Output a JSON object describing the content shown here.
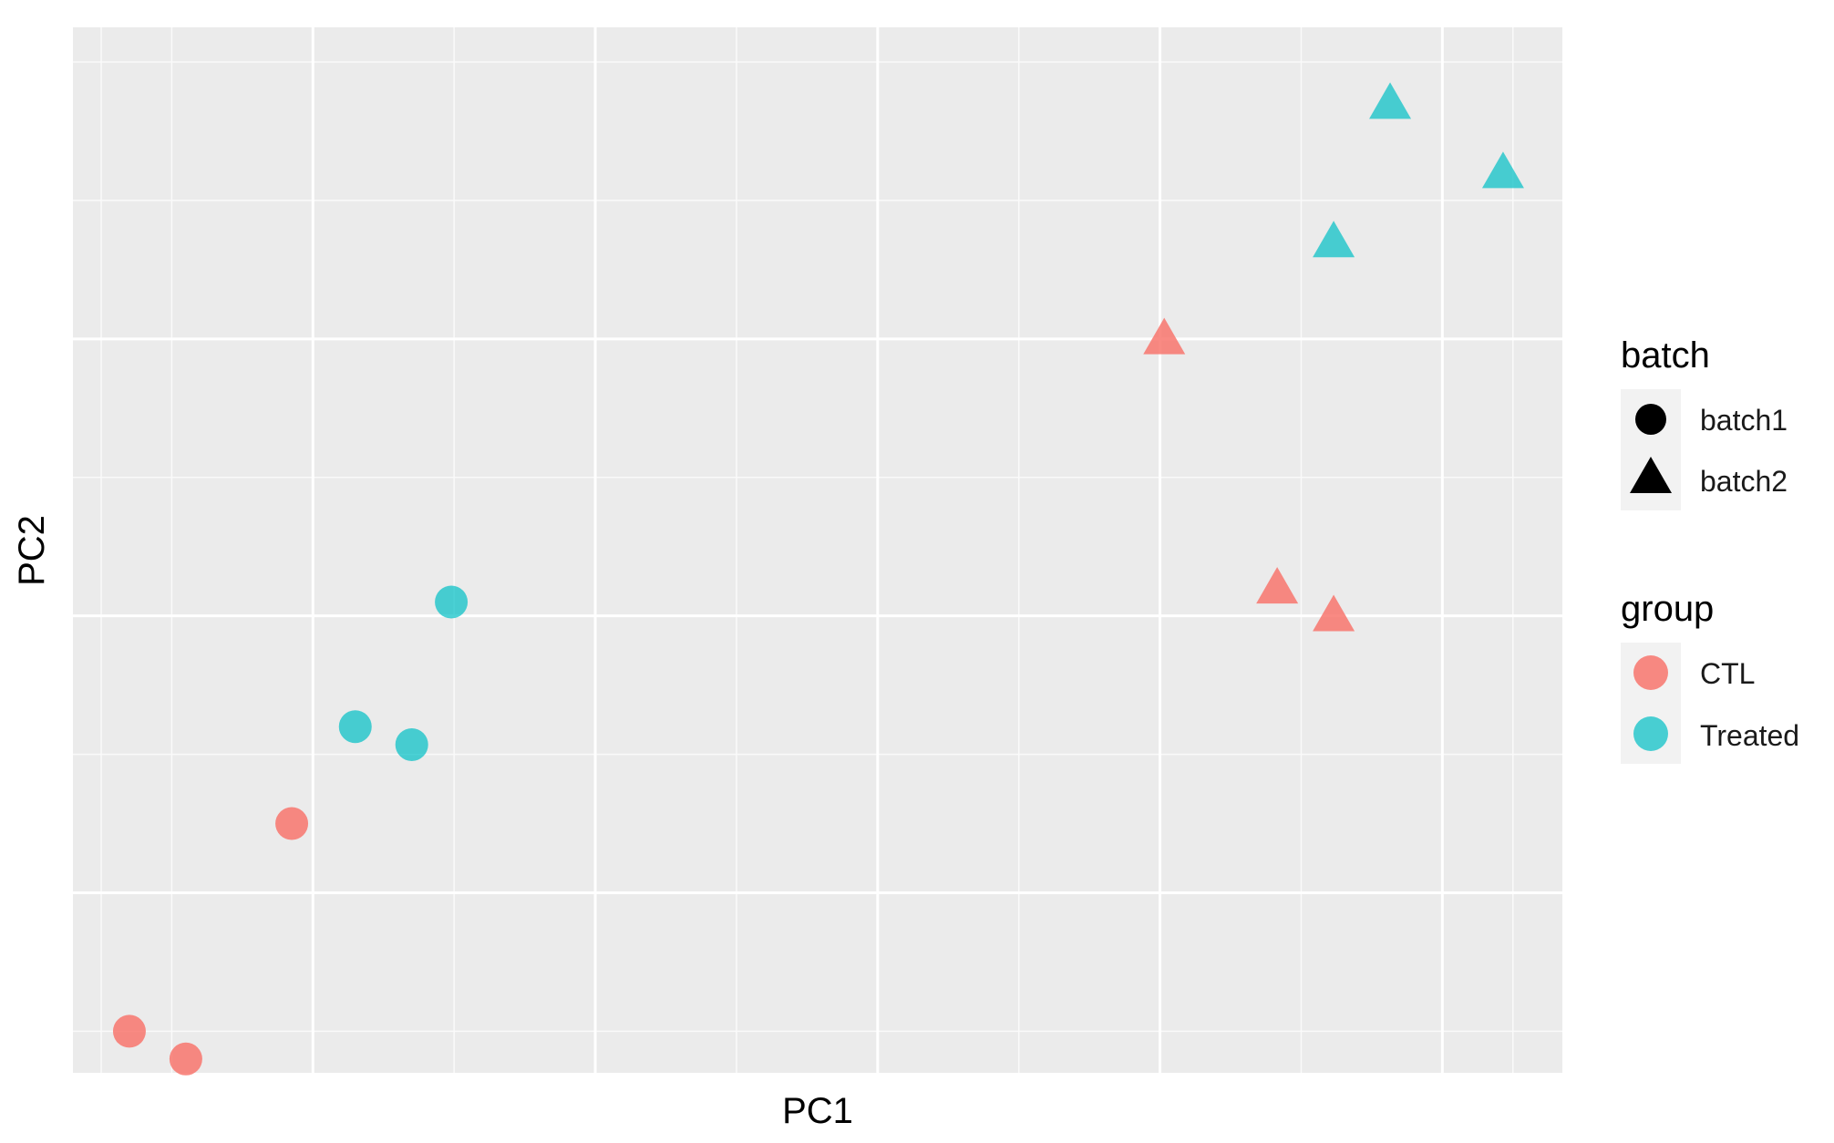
{
  "chart_data": {
    "type": "scatter",
    "xlabel": "PC1",
    "ylabel": "PC2",
    "xlim": [
      0.3,
      10.85
    ],
    "ylim": [
      0.2,
      7.75
    ],
    "x_gridlines_major": [
      2,
      4,
      6,
      8,
      10
    ],
    "x_gridlines_minor": [
      0.5,
      1,
      3,
      5,
      7,
      9,
      10.5
    ],
    "y_gridlines_major": [
      1.5,
      3.5,
      5.5
    ],
    "y_gridlines_minor": [
      0.5,
      2.5,
      4.5,
      6.5,
      7.5
    ],
    "background": "#EBEBEB",
    "grid": true,
    "legend_position": "right",
    "series": [
      {
        "group": "CTL",
        "batch": "batch1",
        "color": "#F8766D",
        "shape": "circle",
        "points": [
          [
            0.7,
            0.5
          ],
          [
            1.1,
            0.3
          ],
          [
            1.85,
            2.0
          ]
        ]
      },
      {
        "group": "Treated",
        "batch": "batch1",
        "color": "#00BFC4",
        "shape": "circle",
        "points": [
          [
            2.3,
            2.7
          ],
          [
            2.7,
            2.57
          ],
          [
            2.98,
            3.6
          ]
        ]
      },
      {
        "group": "CTL",
        "batch": "batch2",
        "color": "#F8766D",
        "shape": "triangle",
        "points": [
          [
            8.03,
            5.5
          ],
          [
            8.83,
            3.7
          ],
          [
            9.23,
            3.5
          ]
        ]
      },
      {
        "group": "Treated",
        "batch": "batch2",
        "color": "#00BFC4",
        "shape": "triangle",
        "points": [
          [
            9.23,
            6.2
          ],
          [
            9.63,
            7.2
          ],
          [
            10.43,
            6.7
          ]
        ]
      }
    ]
  },
  "legend": {
    "batch": {
      "title": "batch",
      "items": [
        {
          "label": "batch1",
          "shape": "circle",
          "color": "#000000"
        },
        {
          "label": "batch2",
          "shape": "triangle",
          "color": "#000000"
        }
      ]
    },
    "group": {
      "title": "group",
      "items": [
        {
          "label": "CTL",
          "shape": "circle",
          "color": "#F8766D"
        },
        {
          "label": "Treated",
          "shape": "circle",
          "color": "#00BFC4"
        }
      ]
    }
  }
}
